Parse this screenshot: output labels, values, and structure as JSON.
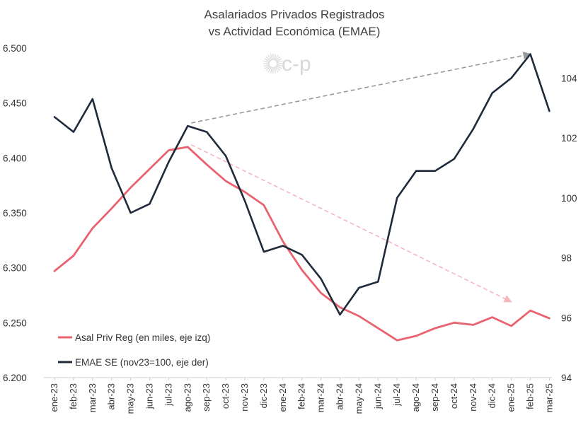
{
  "logo": {
    "text": "c-p"
  },
  "chart_data": {
    "type": "line",
    "title": "Asalariados Privados Registrados",
    "subtitle": "vs Actividad Económica (EMAE)",
    "categories": [
      "ene-23",
      "feb-23",
      "mar-23",
      "abr-23",
      "may-23",
      "jun-23",
      "jul-23",
      "ago-23",
      "sep-23",
      "oct-23",
      "nov-23",
      "dic-23",
      "ene-24",
      "feb-24",
      "mar-24",
      "abr-24",
      "may-24",
      "jun-24",
      "jul-24",
      "ago-24",
      "sep-24",
      "oct-24",
      "nov-24",
      "dic-24",
      "ene-25",
      "feb-25",
      "mar-25"
    ],
    "y_left": {
      "ticks": [
        "6.200",
        "6.250",
        "6.300",
        "6.350",
        "6.400",
        "6.450",
        "6.500"
      ],
      "ylim": [
        6200,
        6500
      ]
    },
    "y_right": {
      "ticks": [
        "94",
        "96",
        "98",
        "100",
        "102",
        "104"
      ],
      "ylim": [
        94,
        105
      ]
    },
    "series": [
      {
        "name": "Asal Priv Reg (en miles, eje izq)",
        "axis": "left",
        "color": "#e8636f",
        "values": [
          6297,
          6311,
          6336,
          6354,
          6373,
          6390,
          6407,
          6410,
          6394,
          6379,
          6369,
          6357,
          6324,
          6298,
          6277,
          6264,
          6256,
          6245,
          6234,
          6238,
          6245,
          6250,
          6248,
          6255,
          6247,
          6261,
          6254
        ]
      },
      {
        "name": "EMAE SE (nov23=100, eje der)",
        "axis": "right",
        "color": "#1f2a3a",
        "values": [
          102.7,
          102.2,
          103.3,
          101.0,
          99.5,
          99.8,
          101.2,
          102.4,
          102.2,
          101.4,
          99.9,
          98.2,
          98.4,
          98.1,
          97.3,
          96.1,
          97.0,
          97.2,
          100.0,
          100.9,
          100.9,
          101.3,
          102.3,
          103.5,
          104.0,
          104.8,
          102.9
        ]
      }
    ],
    "annotations": [
      {
        "type": "arrow",
        "style": "dashed",
        "color": "#999999",
        "axis": "right",
        "from": {
          "x": "ago-23",
          "y": 102.5
        },
        "to": {
          "x": "feb-25",
          "y": 104.8
        }
      },
      {
        "type": "arrow",
        "style": "dashed",
        "color": "#f4b7c0",
        "axis": "left",
        "from": {
          "x": "ago-23",
          "y": 6412
        },
        "to": {
          "x": "ene-25",
          "y": 6269
        }
      }
    ],
    "legend": {
      "placement": "bottom-left"
    },
    "grid": false
  }
}
